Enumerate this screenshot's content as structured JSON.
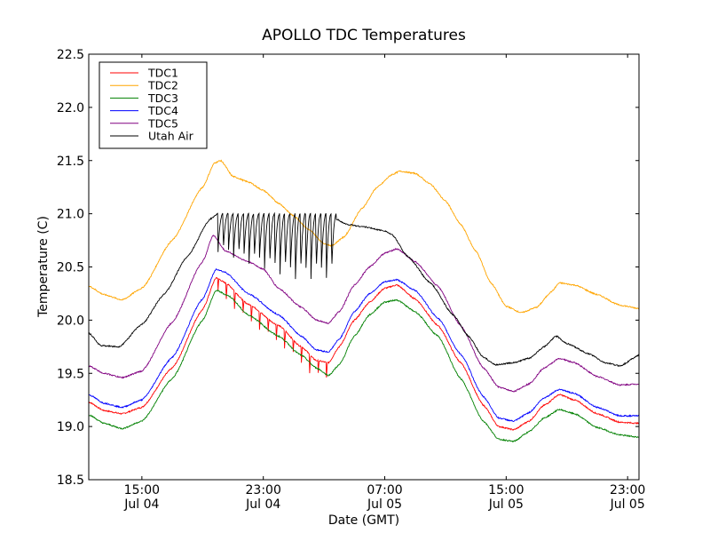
{
  "chart_data": {
    "type": "line",
    "title": "APOLLO TDC Temperatures",
    "xlabel": "Date (GMT)",
    "ylabel": "Temperature (C)",
    "xlim_hours_since_jul04_0000": [
      11.5,
      47.75
    ],
    "ylim": [
      18.5,
      22.5
    ],
    "grid": false,
    "legend_position": "top-left",
    "yticks": [
      18.5,
      19.0,
      19.5,
      20.0,
      20.5,
      21.0,
      21.5,
      22.0,
      22.5
    ],
    "ytick_labels": [
      "18.5",
      "19.0",
      "19.5",
      "20.0",
      "20.5",
      "21.0",
      "21.5",
      "22.0",
      "22.5"
    ],
    "xticks": [
      {
        "hours": 15,
        "label1": "15:00",
        "label2": "Jul 04"
      },
      {
        "hours": 23,
        "label1": "23:00",
        "label2": "Jul 04"
      },
      {
        "hours": 31,
        "label1": "07:00",
        "label2": "Jul 05"
      },
      {
        "hours": 39,
        "label1": "15:00",
        "label2": "Jul 05"
      },
      {
        "hours": 47,
        "label1": "23:00",
        "label2": "Jul 05"
      }
    ],
    "series": [
      {
        "name": "TDC1",
        "color": "#ff0000",
        "points": [
          [
            11.5,
            19.23
          ],
          [
            12.5,
            19.15
          ],
          [
            13.7,
            19.12
          ],
          [
            15,
            19.18
          ],
          [
            17,
            19.55
          ],
          [
            19,
            20.1
          ],
          [
            19.9,
            20.4
          ],
          [
            20.5,
            20.35
          ],
          [
            22,
            20.15
          ],
          [
            24,
            19.95
          ],
          [
            25.5,
            19.75
          ],
          [
            26.5,
            19.62
          ],
          [
            27.3,
            19.6
          ],
          [
            28,
            19.75
          ],
          [
            29,
            20.0
          ],
          [
            30,
            20.17
          ],
          [
            31,
            20.3
          ],
          [
            31.8,
            20.33
          ],
          [
            33,
            20.2
          ],
          [
            34.5,
            19.95
          ],
          [
            36,
            19.6
          ],
          [
            37.5,
            19.2
          ],
          [
            38.5,
            19.0
          ],
          [
            39.5,
            18.97
          ],
          [
            40.5,
            19.05
          ],
          [
            41.5,
            19.2
          ],
          [
            42.5,
            19.3
          ],
          [
            43.5,
            19.25
          ],
          [
            45,
            19.12
          ],
          [
            46.5,
            19.04
          ],
          [
            47.75,
            19.03
          ]
        ],
        "sawtooth": {
          "start": 20.0,
          "end": 27.3,
          "period": 0.55,
          "drop": 0.17
        }
      },
      {
        "name": "TDC2",
        "color": "#ffa500",
        "points": [
          [
            11.5,
            20.32
          ],
          [
            12.5,
            20.24
          ],
          [
            13.7,
            20.19
          ],
          [
            15,
            20.3
          ],
          [
            17,
            20.75
          ],
          [
            19,
            21.25
          ],
          [
            19.8,
            21.48
          ],
          [
            20.2,
            21.5
          ],
          [
            21,
            21.35
          ],
          [
            22,
            21.3
          ],
          [
            23,
            21.22
          ],
          [
            24,
            21.1
          ],
          [
            25,
            20.98
          ],
          [
            26,
            20.85
          ],
          [
            27,
            20.72
          ],
          [
            27.5,
            20.7
          ],
          [
            28.3,
            20.78
          ],
          [
            29.5,
            21.05
          ],
          [
            30.5,
            21.25
          ],
          [
            31.5,
            21.37
          ],
          [
            32,
            21.4
          ],
          [
            33,
            21.38
          ],
          [
            34,
            21.28
          ],
          [
            35,
            21.12
          ],
          [
            36,
            20.9
          ],
          [
            37,
            20.65
          ],
          [
            38,
            20.35
          ],
          [
            39,
            20.13
          ],
          [
            40,
            20.07
          ],
          [
            41,
            20.12
          ],
          [
            42,
            20.27
          ],
          [
            42.5,
            20.35
          ],
          [
            43.5,
            20.33
          ],
          [
            45,
            20.24
          ],
          [
            46.5,
            20.14
          ],
          [
            47.75,
            20.11
          ]
        ],
        "sawtooth": null
      },
      {
        "name": "TDC3",
        "color": "#008000",
        "points": [
          [
            11.5,
            19.11
          ],
          [
            12.5,
            19.03
          ],
          [
            13.7,
            18.98
          ],
          [
            15,
            19.05
          ],
          [
            17,
            19.45
          ],
          [
            19,
            20.0
          ],
          [
            19.9,
            20.28
          ],
          [
            20.7,
            20.23
          ],
          [
            22,
            20.05
          ],
          [
            24,
            19.85
          ],
          [
            25.5,
            19.67
          ],
          [
            26.5,
            19.55
          ],
          [
            27.3,
            19.48
          ],
          [
            28,
            19.58
          ],
          [
            29,
            19.85
          ],
          [
            30,
            20.05
          ],
          [
            31,
            20.17
          ],
          [
            31.8,
            20.19
          ],
          [
            33,
            20.08
          ],
          [
            34.5,
            19.85
          ],
          [
            36,
            19.45
          ],
          [
            37.5,
            19.05
          ],
          [
            38.5,
            18.88
          ],
          [
            39.5,
            18.86
          ],
          [
            40.5,
            18.95
          ],
          [
            41.5,
            19.08
          ],
          [
            42.5,
            19.16
          ],
          [
            43.5,
            19.12
          ],
          [
            45,
            18.99
          ],
          [
            46.5,
            18.92
          ],
          [
            47.75,
            18.9
          ]
        ],
        "sawtooth": null
      },
      {
        "name": "TDC4",
        "color": "#0000ff",
        "points": [
          [
            11.5,
            19.3
          ],
          [
            12.5,
            19.22
          ],
          [
            13.7,
            19.18
          ],
          [
            15,
            19.25
          ],
          [
            17,
            19.65
          ],
          [
            19,
            20.2
          ],
          [
            19.9,
            20.48
          ],
          [
            20.5,
            20.45
          ],
          [
            22,
            20.25
          ],
          [
            24,
            20.05
          ],
          [
            25.5,
            19.85
          ],
          [
            26.5,
            19.72
          ],
          [
            27.3,
            19.7
          ],
          [
            28,
            19.82
          ],
          [
            29,
            20.08
          ],
          [
            30,
            20.25
          ],
          [
            31,
            20.36
          ],
          [
            31.8,
            20.38
          ],
          [
            33,
            20.28
          ],
          [
            34.5,
            20.02
          ],
          [
            36,
            19.68
          ],
          [
            37.5,
            19.28
          ],
          [
            38.5,
            19.08
          ],
          [
            39.5,
            19.05
          ],
          [
            40.5,
            19.13
          ],
          [
            41.5,
            19.27
          ],
          [
            42.5,
            19.35
          ],
          [
            43.5,
            19.31
          ],
          [
            45,
            19.18
          ],
          [
            46.5,
            19.1
          ],
          [
            47.75,
            19.1
          ]
        ],
        "sawtooth": null
      },
      {
        "name": "TDC5",
        "color": "#800080",
        "points": [
          [
            11.5,
            19.57
          ],
          [
            12.5,
            19.5
          ],
          [
            13.7,
            19.46
          ],
          [
            15,
            19.52
          ],
          [
            17,
            19.98
          ],
          [
            19,
            20.55
          ],
          [
            19.7,
            20.8
          ],
          [
            20.5,
            20.65
          ],
          [
            22,
            20.55
          ],
          [
            23,
            20.48
          ],
          [
            24,
            20.3
          ],
          [
            25.5,
            20.12
          ],
          [
            26.5,
            20.0
          ],
          [
            27.3,
            19.97
          ],
          [
            28,
            20.08
          ],
          [
            29,
            20.33
          ],
          [
            30,
            20.5
          ],
          [
            31,
            20.63
          ],
          [
            31.8,
            20.67
          ],
          [
            33,
            20.55
          ],
          [
            34.5,
            20.32
          ],
          [
            36,
            19.95
          ],
          [
            37.5,
            19.55
          ],
          [
            38.5,
            19.37
          ],
          [
            39.5,
            19.33
          ],
          [
            40.5,
            19.4
          ],
          [
            41.5,
            19.55
          ],
          [
            42.5,
            19.64
          ],
          [
            43.5,
            19.6
          ],
          [
            45,
            19.47
          ],
          [
            46.5,
            19.39
          ],
          [
            47.75,
            19.4
          ]
        ],
        "sawtooth": null
      },
      {
        "name": "Utah Air",
        "color": "#000000",
        "points": [
          [
            11.5,
            19.88
          ],
          [
            12.3,
            19.76
          ],
          [
            13.5,
            19.75
          ],
          [
            15,
            19.96
          ],
          [
            16.5,
            20.25
          ],
          [
            18,
            20.6
          ],
          [
            19.5,
            20.95
          ],
          [
            20,
            21.0
          ],
          [
            27.8,
            20.95
          ],
          [
            28.5,
            20.9
          ],
          [
            29.5,
            20.88
          ],
          [
            31,
            20.84
          ],
          [
            31.5,
            20.8
          ],
          [
            32.5,
            20.6
          ],
          [
            34,
            20.35
          ],
          [
            35.5,
            20.05
          ],
          [
            36.5,
            19.85
          ],
          [
            37.5,
            19.65
          ],
          [
            38.3,
            19.58
          ],
          [
            39.5,
            19.6
          ],
          [
            40.5,
            19.64
          ],
          [
            41.5,
            19.75
          ],
          [
            42.3,
            19.85
          ],
          [
            43,
            19.78
          ],
          [
            44.5,
            19.68
          ],
          [
            45.5,
            19.6
          ],
          [
            46.5,
            19.57
          ],
          [
            47.75,
            19.67
          ]
        ],
        "sawtooth": {
          "start": 20.0,
          "end": 27.8,
          "period": 0.34,
          "drop": 0.62,
          "top": 21.0
        }
      }
    ]
  }
}
